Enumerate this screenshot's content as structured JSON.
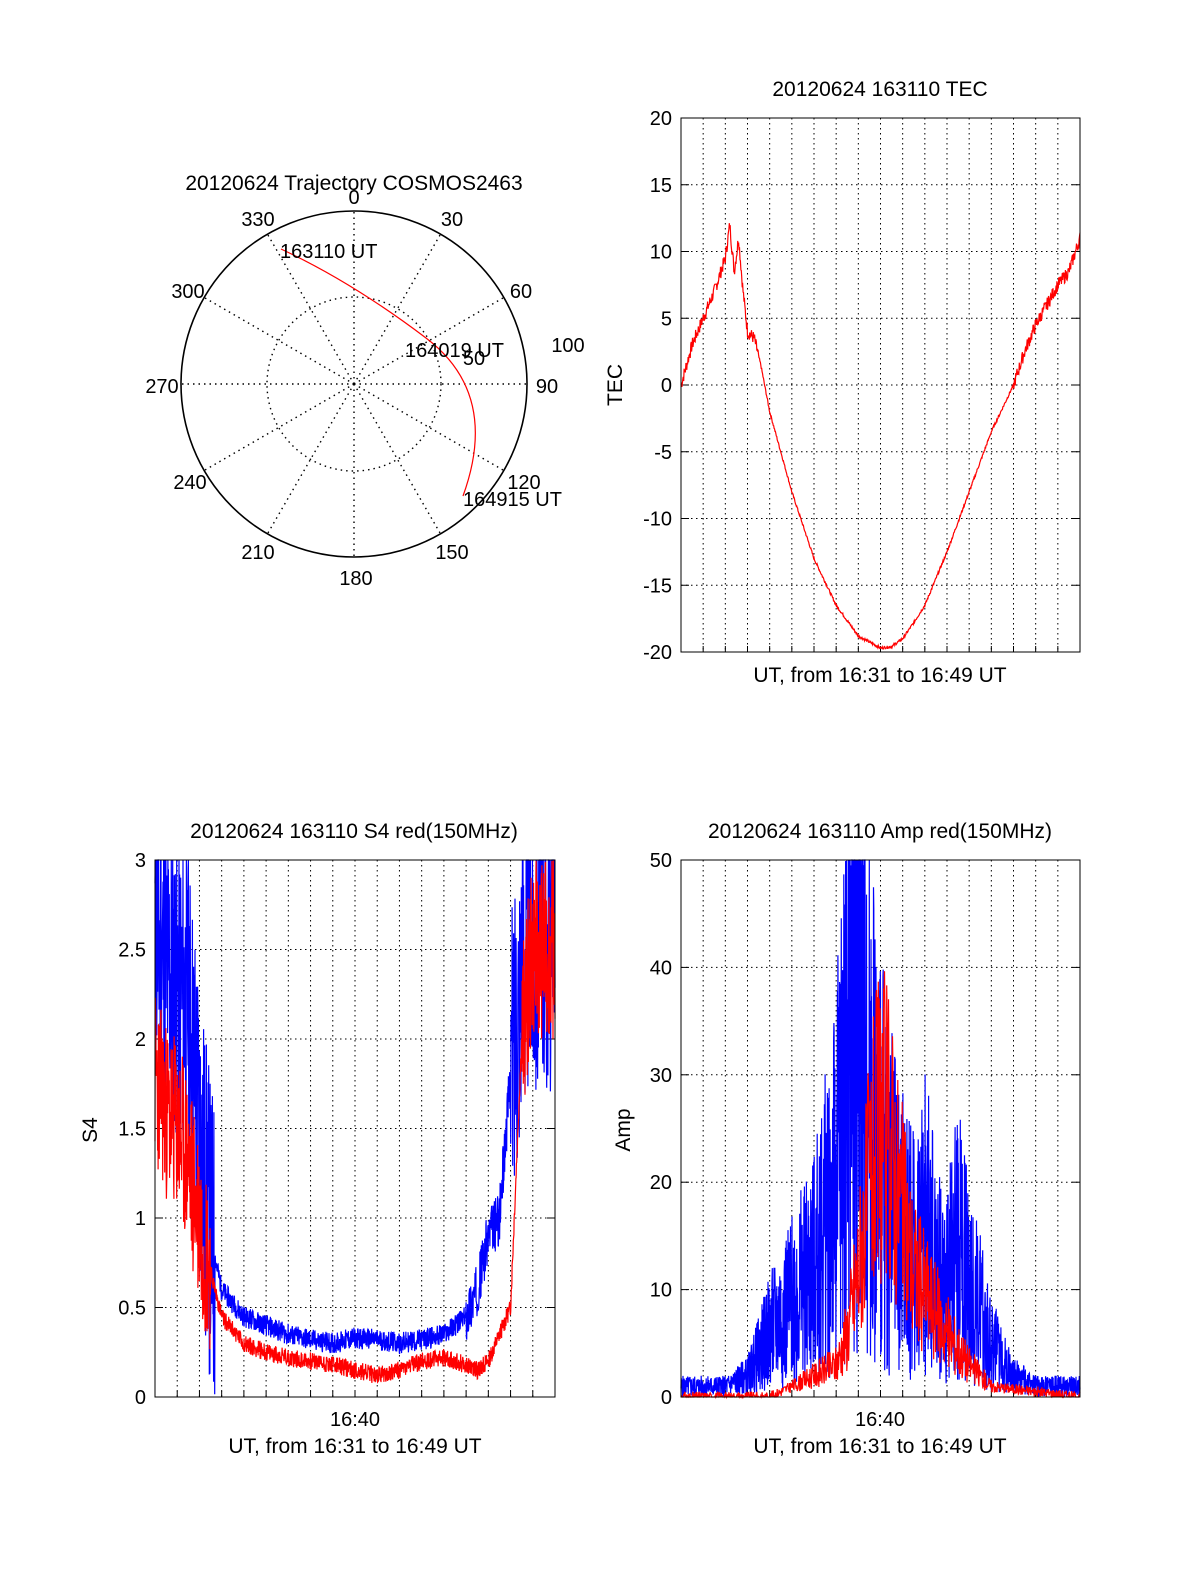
{
  "chart_data": [
    {
      "type": "polar",
      "title": "20120624 Trajectory COSMOS2463",
      "azimuth_labels": [
        "0",
        "30",
        "60",
        "90",
        "120",
        "150",
        "180",
        "210",
        "240",
        "270",
        "300",
        "330"
      ],
      "elevation_labels": [
        "50",
        "100"
      ],
      "trajectory_color": "#ff0000",
      "trajectory": {
        "start": {
          "azimuth": 330,
          "elevation": 7
        },
        "mid": {
          "azimuth": 72,
          "elevation": 40
        },
        "end": {
          "azimuth": 131,
          "elevation": 18
        }
      },
      "time_labels": [
        "163110 UT",
        "164019 UT",
        "164915 UT"
      ]
    },
    {
      "type": "line",
      "title": "20120624 163110 TEC",
      "xlabel": "UT, from 16:31 to 16:49 UT",
      "ylabel": "TEC",
      "ylim": [
        -20,
        20
      ],
      "yticks": [
        "20",
        "15",
        "10",
        "5",
        "0",
        "-5",
        "-10",
        "-15",
        "-20"
      ],
      "xlim_minutes": [
        0,
        18
      ],
      "grid": true,
      "series": [
        {
          "color": "#ff0000",
          "x": [
            0,
            0.5,
            1,
            1.5,
            2,
            2.2,
            2.4,
            2.6,
            2.8,
            3,
            3.3,
            3.6,
            4,
            5,
            6,
            7,
            8,
            9,
            9.5,
            10,
            10.5,
            11,
            12,
            13,
            14,
            15,
            15.5,
            16,
            16.5,
            17,
            17.5,
            18
          ],
          "y": [
            0,
            3,
            5,
            7,
            9.5,
            12,
            8.5,
            11,
            7,
            4,
            3.5,
            1.5,
            -2,
            -8,
            -13,
            -16.5,
            -18.8,
            -19.7,
            -19.6,
            -19,
            -17.8,
            -16.5,
            -12.5,
            -8,
            -3.5,
            0,
            2.5,
            4.5,
            6,
            7.5,
            8.5,
            11
          ]
        }
      ]
    },
    {
      "type": "line",
      "title": "20120624 163110 S4 red(150MHz)",
      "xlabel": "UT, from 16:31 to 16:49 UT",
      "ylabel": "S4",
      "ylim": [
        0,
        3
      ],
      "yticks": [
        "3",
        "2.5",
        "2",
        "1.5",
        "1",
        "0.5",
        "0"
      ],
      "xtick_label": "16:40",
      "xlim_minutes": [
        0,
        18
      ],
      "grid": true,
      "series": [
        {
          "color": "#0000ff",
          "x": [
            0,
            0.5,
            1,
            1.5,
            2,
            2.5,
            3,
            4,
            5,
            6,
            7,
            8,
            9,
            10,
            11,
            12,
            13,
            14,
            14.5,
            15,
            15.5,
            16,
            16.5,
            17,
            18
          ],
          "y": [
            2.6,
            2.4,
            2.3,
            2.2,
            1.5,
            0.9,
            0.6,
            0.45,
            0.4,
            0.35,
            0.32,
            0.3,
            0.33,
            0.32,
            0.3,
            0.32,
            0.35,
            0.45,
            0.6,
            0.9,
            1.0,
            1.8,
            2.5,
            2.6,
            2.6
          ]
        },
        {
          "color": "#ff0000",
          "x": [
            0,
            0.5,
            1,
            1.5,
            2,
            2.5,
            3,
            4,
            5,
            6,
            7,
            8,
            9,
            10,
            11,
            12,
            13,
            14,
            14.5,
            15,
            15.5,
            16,
            16.5,
            17,
            18
          ],
          "y": [
            1.8,
            1.6,
            1.5,
            1.3,
            1.0,
            0.7,
            0.45,
            0.3,
            0.25,
            0.22,
            0.2,
            0.18,
            0.15,
            0.12,
            0.15,
            0.2,
            0.22,
            0.18,
            0.15,
            0.2,
            0.35,
            0.5,
            2.0,
            2.5,
            2.5
          ]
        }
      ]
    },
    {
      "type": "line",
      "title": "20120624 163110 Amp red(150MHz)",
      "xlabel": "UT, from 16:31 to 16:49 UT",
      "ylabel": "Amp",
      "ylim": [
        0,
        50
      ],
      "yticks": [
        "50",
        "40",
        "30",
        "20",
        "10",
        "0"
      ],
      "xtick_label": "16:40",
      "xlim_minutes": [
        0,
        18
      ],
      "grid": true,
      "series": [
        {
          "color": "#0000ff",
          "x": [
            0,
            1,
            2,
            3,
            4,
            5,
            6,
            7,
            7.5,
            8,
            8.5,
            9,
            9.5,
            10,
            10.5,
            11,
            11.5,
            12,
            12.5,
            13,
            13.5,
            14,
            15,
            16,
            17,
            18
          ],
          "y": [
            1,
            1,
            1,
            2,
            6,
            9,
            12,
            20,
            32,
            40,
            30,
            22,
            18,
            15,
            13,
            17,
            12,
            10,
            15,
            11,
            8,
            5,
            2,
            1,
            1,
            1
          ]
        },
        {
          "color": "#ff0000",
          "x": [
            0,
            4,
            5,
            6,
            7,
            7.5,
            8,
            8.5,
            9,
            9.5,
            10,
            10.5,
            11,
            11.5,
            12,
            13,
            14,
            18
          ],
          "y": [
            0,
            0,
            1,
            2,
            3,
            6,
            12,
            20,
            26,
            23,
            17,
            12,
            10,
            8,
            6,
            3,
            1,
            0
          ]
        }
      ]
    }
  ]
}
